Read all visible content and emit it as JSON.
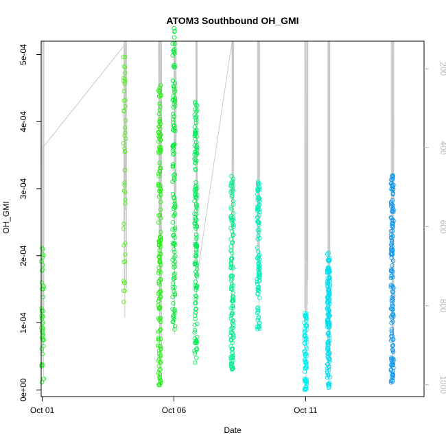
{
  "chart_data": {
    "type": "scatter",
    "title": "ATOM3 Southbound OH_GMI",
    "xlabel": "Date",
    "ylabel": "OH_GMI",
    "x_axis": {
      "type": "date",
      "range": [
        "2017-09-30T23:00",
        "2017-10-15T12:00"
      ],
      "ticks": [
        "Oct 01",
        "Oct 06",
        "Oct 11"
      ],
      "tick_dates": [
        "2017-10-01",
        "2017-10-06",
        "2017-10-11"
      ]
    },
    "y_axis": {
      "range": [
        -1e-05,
        0.00052
      ],
      "ticks": [
        "0e+00",
        "1e-04",
        "2e-04",
        "3e-04",
        "4e-04",
        "5e-04"
      ],
      "tick_values": [
        0,
        0.0001,
        0.0002,
        0.0003,
        0.0004,
        0.0005
      ]
    },
    "right_axis": {
      "label_color": "#b8b8b8",
      "range_reversed": [
        130,
        1030
      ],
      "ticks": [
        "200",
        "400",
        "600",
        "800",
        "1000"
      ],
      "tick_values": [
        200,
        400,
        600,
        800,
        1000
      ],
      "series_color": "#c8c8c8"
    },
    "grid": false,
    "legend": "none",
    "colors": {
      "early": "#33ee33",
      "middle": "#00ffff",
      "late": "#0099ee"
    },
    "flights": [
      {
        "date": "2017-10-01T00:15",
        "color": "#33ee33",
        "oh_min": 1e-05,
        "oh_max": 0.000215,
        "n": 50,
        "pressure_min": 130,
        "pressure_max": 980
      },
      {
        "date": "2017-10-04T03:00",
        "color": "#55ee22",
        "oh_min": 0.000115,
        "oh_max": 0.0005,
        "n": 45,
        "pressure_min": 130,
        "pressure_max": 820
      },
      {
        "date": "2017-10-05T11:00",
        "color": "#22ee11",
        "oh_min": 5e-06,
        "oh_max": 0.000455,
        "n": 150,
        "pressure_min": 130,
        "pressure_max": 990
      },
      {
        "date": "2017-10-06T00:00",
        "color": "#00ee33",
        "oh_min": 9e-05,
        "oh_max": 0.000555,
        "n": 120,
        "pressure_min": 130,
        "pressure_max": 870
      },
      {
        "date": "2017-10-06T20:00",
        "color": "#00ee55",
        "oh_min": 4e-05,
        "oh_max": 0.00044,
        "n": 140,
        "pressure_min": 130,
        "pressure_max": 820
      },
      {
        "date": "2017-10-08T05:00",
        "color": "#00ee88",
        "oh_min": 3e-05,
        "oh_max": 0.00032,
        "n": 120,
        "pressure_min": 130,
        "pressure_max": 900
      },
      {
        "date": "2017-10-09T05:00",
        "color": "#00eebb",
        "oh_min": 9e-05,
        "oh_max": 0.00033,
        "n": 100,
        "pressure_min": 130,
        "pressure_max": 860
      },
      {
        "date": "2017-10-11T00:00",
        "color": "#00eeee",
        "oh_min": 0.0,
        "oh_max": 0.000115,
        "n": 70,
        "pressure_min": 130,
        "pressure_max": 1000
      },
      {
        "date": "2017-10-11T21:00",
        "color": "#00ddee",
        "oh_min": 0.0,
        "oh_max": 0.000205,
        "n": 140,
        "pressure_min": 130,
        "pressure_max": 1000
      },
      {
        "date": "2017-10-14T07:00",
        "color": "#1199ee",
        "oh_min": 1e-05,
        "oh_max": 0.00032,
        "n": 150,
        "pressure_min": 130,
        "pressure_max": 990
      }
    ],
    "pressure_track": [
      [
        "2017-10-01T00:00",
        130
      ],
      [
        "2017-10-01T00:08",
        500
      ],
      [
        "2017-10-01T00:13",
        960
      ],
      [
        "2017-10-01T00:18",
        400
      ],
      [
        "2017-10-04T03:00",
        140
      ],
      [
        "2017-10-04T03:10",
        830
      ],
      [
        "2017-10-04T03:25",
        500
      ],
      [
        "2017-10-04T03:40",
        130
      ],
      [
        "2017-10-05T10:00",
        130
      ],
      [
        "2017-10-05T10:30",
        580
      ],
      [
        "2017-10-05T11:00",
        990
      ],
      [
        "2017-10-05T11:30",
        130
      ],
      [
        "2017-10-05T12:00",
        880
      ],
      [
        "2017-10-05T12:20",
        130
      ],
      [
        "2017-10-06T00:00",
        130
      ],
      [
        "2017-10-06T00:30",
        870
      ],
      [
        "2017-10-06T01:00",
        130
      ],
      [
        "2017-10-06T20:00",
        130
      ],
      [
        "2017-10-06T20:30",
        820
      ],
      [
        "2017-10-06T21:00",
        130
      ],
      [
        "2017-10-06T21:30",
        720
      ],
      [
        "2017-10-08T05:00",
        130
      ],
      [
        "2017-10-08T05:30",
        900
      ],
      [
        "2017-10-08T06:00",
        130
      ],
      [
        "2017-10-09T05:00",
        130
      ],
      [
        "2017-10-09T05:30",
        860
      ],
      [
        "2017-10-09T06:00",
        130
      ],
      [
        "2017-10-11T00:00",
        130
      ],
      [
        "2017-10-11T00:30",
        1000
      ],
      [
        "2017-10-11T01:00",
        130
      ],
      [
        "2017-10-11T21:00",
        130
      ],
      [
        "2017-10-11T21:30",
        1000
      ],
      [
        "2017-10-11T22:00",
        130
      ],
      [
        "2017-10-14T07:00",
        130
      ],
      [
        "2017-10-14T07:30",
        990
      ],
      [
        "2017-10-14T08:00",
        130
      ]
    ]
  }
}
